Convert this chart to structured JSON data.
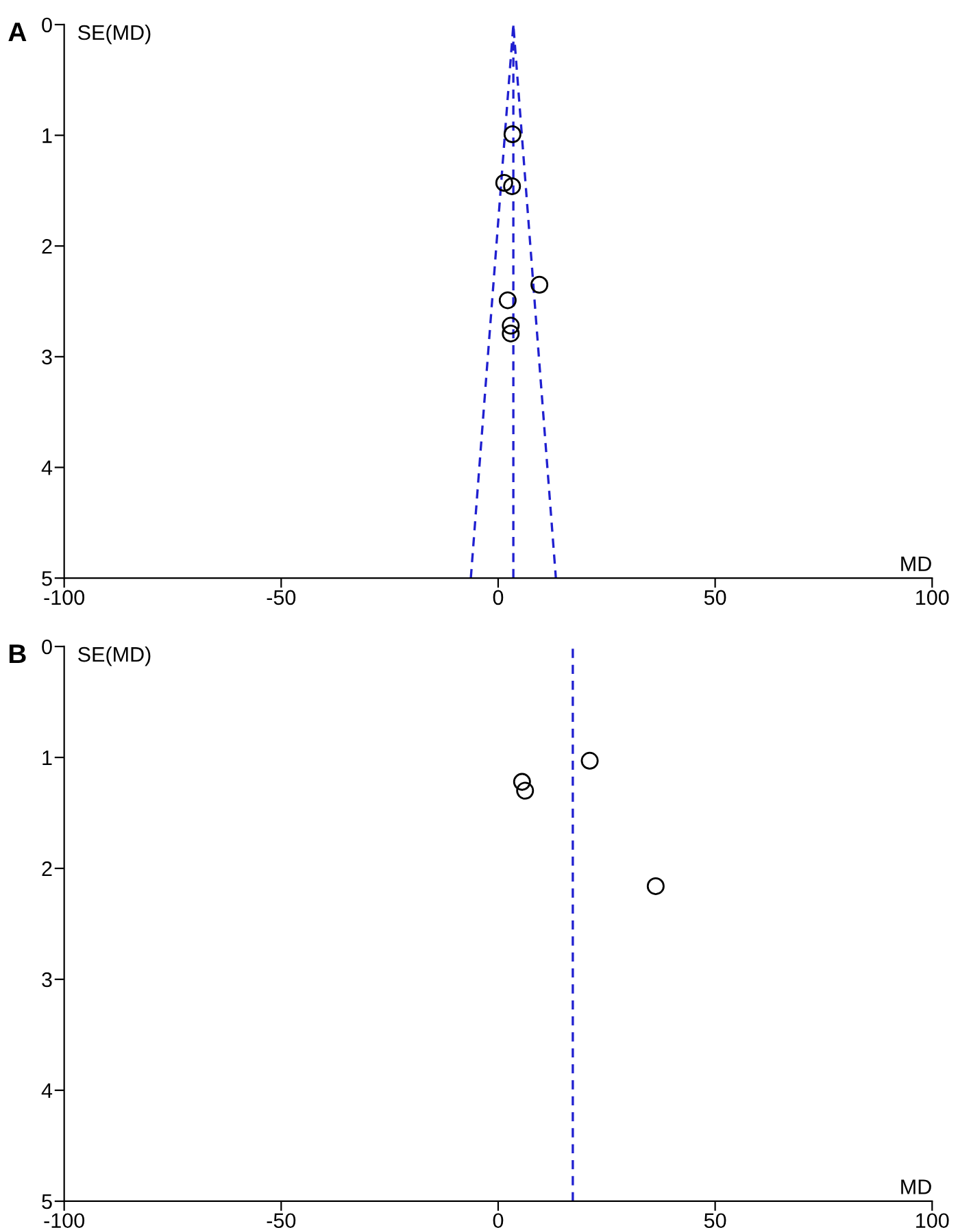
{
  "chart_data": [
    {
      "type": "scatter",
      "title": "A",
      "xlabel": "MD",
      "ylabel": "SE(MD)",
      "xlim": [
        -100,
        100
      ],
      "ylim": [
        5,
        0
      ],
      "xticks": [
        -100,
        -50,
        0,
        50,
        100
      ],
      "yticks": [
        0,
        1,
        2,
        3,
        4,
        5
      ],
      "grid": false,
      "legend": false,
      "marker": "circle",
      "series": [
        {
          "color": "#000000",
          "x": [
            3.3,
            1.4,
            3.2,
            9.5,
            2.2,
            2.9,
            2.9
          ],
          "values": [
            0.99,
            1.43,
            1.46,
            2.35,
            2.49,
            2.72,
            2.79
          ]
        },
        {
          "type": "line",
          "marker": "none",
          "color": "#2020d0",
          "line_style": "dashed",
          "x": [
            -6.3,
            3.5,
            13.3
          ],
          "values": [
            5,
            0,
            5
          ]
        }
      ],
      "ref_lines": [
        {
          "axis": "x",
          "value": 3.5,
          "color": "#2020d0",
          "line_style": "dashed"
        }
      ]
    },
    {
      "type": "scatter",
      "title": "B",
      "xlabel": "MD",
      "ylabel": "SE(MD)",
      "xlim": [
        -100,
        100
      ],
      "ylim": [
        5,
        0
      ],
      "xticks": [
        -100,
        -50,
        0,
        50,
        100
      ],
      "yticks": [
        0,
        1,
        2,
        3,
        4,
        5
      ],
      "grid": false,
      "legend": false,
      "marker": "circle",
      "series": [
        {
          "color": "#000000",
          "x": [
            21.1,
            5.5,
            6.2,
            36.3
          ],
          "values": [
            1.03,
            1.22,
            1.3,
            2.16
          ]
        }
      ],
      "ref_lines": [
        {
          "axis": "x",
          "value": 17.2,
          "color": "#2020d0",
          "line_style": "dashed"
        }
      ]
    }
  ]
}
